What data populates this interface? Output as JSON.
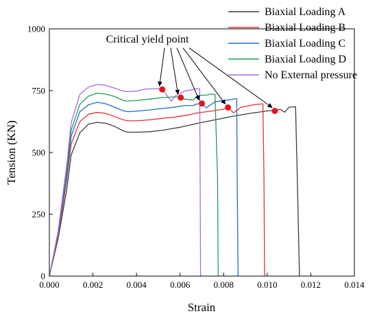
{
  "chart_data": {
    "type": "line",
    "title": "",
    "xlabel": "Strain",
    "ylabel": "Tension (KN)",
    "xlim": [
      0,
      0.014
    ],
    "ylim": [
      0,
      1000
    ],
    "xticks": [
      "0.000",
      "0.002",
      "0.004",
      "0.006",
      "0.008",
      "0.010",
      "0.012",
      "0.014"
    ],
    "yticks": [
      "0",
      "250",
      "500",
      "750",
      "1000"
    ],
    "grid": false,
    "legend_position": "top-right",
    "annotation": {
      "text": "Critical yield point",
      "text_at": [
        0.0045,
        945
      ],
      "points": [
        {
          "x": 0.00518,
          "y": 755
        },
        {
          "x": 0.00603,
          "y": 722
        },
        {
          "x": 0.007,
          "y": 698
        },
        {
          "x": 0.0082,
          "y": 682
        },
        {
          "x": 0.01035,
          "y": 668
        }
      ]
    },
    "series": [
      {
        "name": "Biaxial Loading A",
        "color": "#3a3a3a",
        "points": [
          [
            0,
            0
          ],
          [
            0.0004,
            150
          ],
          [
            0.0008,
            350
          ],
          [
            0.001,
            490
          ],
          [
            0.0014,
            580
          ],
          [
            0.0018,
            615
          ],
          [
            0.0022,
            622
          ],
          [
            0.0026,
            618
          ],
          [
            0.003,
            605
          ],
          [
            0.0034,
            587
          ],
          [
            0.0036,
            582
          ],
          [
            0.004,
            582
          ],
          [
            0.0046,
            584
          ],
          [
            0.0052,
            590
          ],
          [
            0.006,
            602
          ],
          [
            0.0068,
            618
          ],
          [
            0.0076,
            632
          ],
          [
            0.0084,
            646
          ],
          [
            0.0092,
            658
          ],
          [
            0.01,
            668
          ],
          [
            0.01035,
            670
          ],
          [
            0.0106,
            675
          ],
          [
            0.0108,
            663
          ],
          [
            0.011,
            683
          ],
          [
            0.0113,
            685
          ],
          [
            0.01138,
            400
          ],
          [
            0.01148,
            0
          ]
        ]
      },
      {
        "name": "Biaxial Loading B",
        "color": "#e03030",
        "points": [
          [
            0,
            0
          ],
          [
            0.0004,
            160
          ],
          [
            0.0008,
            390
          ],
          [
            0.001,
            535
          ],
          [
            0.0014,
            625
          ],
          [
            0.0018,
            655
          ],
          [
            0.0022,
            662
          ],
          [
            0.0026,
            658
          ],
          [
            0.003,
            645
          ],
          [
            0.0034,
            632
          ],
          [
            0.0036,
            628
          ],
          [
            0.004,
            628
          ],
          [
            0.0046,
            632
          ],
          [
            0.0052,
            638
          ],
          [
            0.0058,
            644
          ],
          [
            0.0064,
            652
          ],
          [
            0.0068,
            660
          ],
          [
            0.0074,
            667
          ],
          [
            0.008,
            675
          ],
          [
            0.0082,
            683
          ],
          [
            0.00845,
            660
          ],
          [
            0.0088,
            683
          ],
          [
            0.0094,
            693
          ],
          [
            0.0098,
            697
          ],
          [
            0.00985,
            400
          ],
          [
            0.00988,
            0
          ]
        ]
      },
      {
        "name": "Biaxial Loading C",
        "color": "#1b6fcf",
        "points": [
          [
            0,
            0
          ],
          [
            0.0004,
            170
          ],
          [
            0.0008,
            410
          ],
          [
            0.001,
            565
          ],
          [
            0.0014,
            665
          ],
          [
            0.0018,
            693
          ],
          [
            0.0022,
            703
          ],
          [
            0.0026,
            697
          ],
          [
            0.003,
            683
          ],
          [
            0.0034,
            668
          ],
          [
            0.0036,
            665
          ],
          [
            0.004,
            667
          ],
          [
            0.0046,
            672
          ],
          [
            0.0052,
            678
          ],
          [
            0.0058,
            684
          ],
          [
            0.0062,
            690
          ],
          [
            0.0066,
            690
          ],
          [
            0.0068,
            697
          ],
          [
            0.007,
            698
          ],
          [
            0.0072,
            680
          ],
          [
            0.0076,
            705
          ],
          [
            0.0082,
            712
          ],
          [
            0.0086,
            718
          ],
          [
            0.00862,
            400
          ],
          [
            0.00866,
            0
          ]
        ]
      },
      {
        "name": "Biaxial Loading D",
        "color": "#1e9c5c",
        "points": [
          [
            0,
            0
          ],
          [
            0.0004,
            175
          ],
          [
            0.0008,
            430
          ],
          [
            0.001,
            590
          ],
          [
            0.0014,
            695
          ],
          [
            0.0018,
            728
          ],
          [
            0.0022,
            740
          ],
          [
            0.0026,
            736
          ],
          [
            0.003,
            726
          ],
          [
            0.0034,
            710
          ],
          [
            0.0036,
            708
          ],
          [
            0.004,
            710
          ],
          [
            0.0046,
            716
          ],
          [
            0.0052,
            722
          ],
          [
            0.0058,
            725
          ],
          [
            0.00603,
            723
          ],
          [
            0.0062,
            716
          ],
          [
            0.0066,
            712
          ],
          [
            0.0068,
            730
          ],
          [
            0.0072,
            732
          ],
          [
            0.0074,
            736
          ],
          [
            0.0076,
            735
          ],
          [
            0.00772,
            400
          ],
          [
            0.00775,
            0
          ]
        ]
      },
      {
        "name": "No External pressure",
        "color": "#a56ce0",
        "points": [
          [
            0,
            0
          ],
          [
            0.0004,
            180
          ],
          [
            0.0008,
            450
          ],
          [
            0.001,
            620
          ],
          [
            0.0014,
            735
          ],
          [
            0.0018,
            765
          ],
          [
            0.0022,
            775
          ],
          [
            0.0026,
            771
          ],
          [
            0.003,
            760
          ],
          [
            0.0034,
            748
          ],
          [
            0.0036,
            746
          ],
          [
            0.004,
            748
          ],
          [
            0.0044,
            756
          ],
          [
            0.0048,
            758
          ],
          [
            0.00518,
            757
          ],
          [
            0.0054,
            730
          ],
          [
            0.0056,
            708
          ],
          [
            0.0058,
            730
          ],
          [
            0.0062,
            748
          ],
          [
            0.0066,
            755
          ],
          [
            0.0068,
            758
          ],
          [
            0.0069,
            757
          ],
          [
            0.00692,
            400
          ],
          [
            0.00694,
            0
          ]
        ]
      }
    ]
  }
}
